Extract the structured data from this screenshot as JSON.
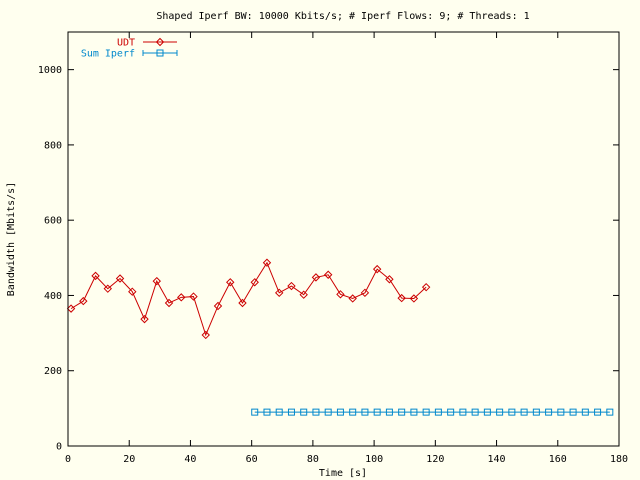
{
  "chart_data": {
    "type": "line",
    "title": "Shaped Iperf BW: 10000 Kbits/s; # Iperf Flows: 9; # Threads: 1",
    "xlabel": "Time [s]",
    "ylabel": "Bandwidth [Mbits/s]",
    "xlim": [
      0,
      180
    ],
    "ylim": [
      0,
      1100
    ],
    "xticks": [
      0,
      20,
      40,
      60,
      80,
      100,
      120,
      140,
      160,
      180
    ],
    "yticks": [
      0,
      200,
      400,
      600,
      800,
      1000
    ],
    "grid": false,
    "legend_position": "top-left",
    "background_color": "#ffffef",
    "series": [
      {
        "name": "UDT",
        "color": "#cc0000",
        "marker": "diamond",
        "x": [
          1,
          5,
          9,
          13,
          17,
          21,
          25,
          29,
          33,
          37,
          41,
          45,
          49,
          53,
          57,
          61,
          65,
          69,
          73,
          77,
          81,
          85,
          89,
          93,
          97,
          101,
          105,
          109,
          113,
          117
        ],
        "y": [
          365,
          385,
          452,
          418,
          445,
          410,
          337,
          438,
          380,
          395,
          397,
          295,
          372,
          435,
          380,
          435,
          487,
          407,
          425,
          402,
          448,
          455,
          403,
          392,
          407,
          470,
          443,
          393,
          392,
          422
        ]
      },
      {
        "name": "Sum Iperf",
        "color": "#0088cc",
        "marker": "square",
        "x": [
          61,
          65,
          69,
          73,
          77,
          81,
          85,
          89,
          93,
          97,
          101,
          105,
          109,
          113,
          117,
          121,
          125,
          129,
          133,
          137,
          141,
          145,
          149,
          153,
          157,
          161,
          165,
          169,
          173,
          177
        ],
        "y": [
          90,
          90,
          90,
          90,
          90,
          90,
          90,
          90,
          90,
          90,
          90,
          90,
          90,
          90,
          90,
          90,
          90,
          90,
          90,
          90,
          90,
          90,
          90,
          90,
          90,
          90,
          90,
          90,
          90,
          90
        ]
      }
    ]
  }
}
